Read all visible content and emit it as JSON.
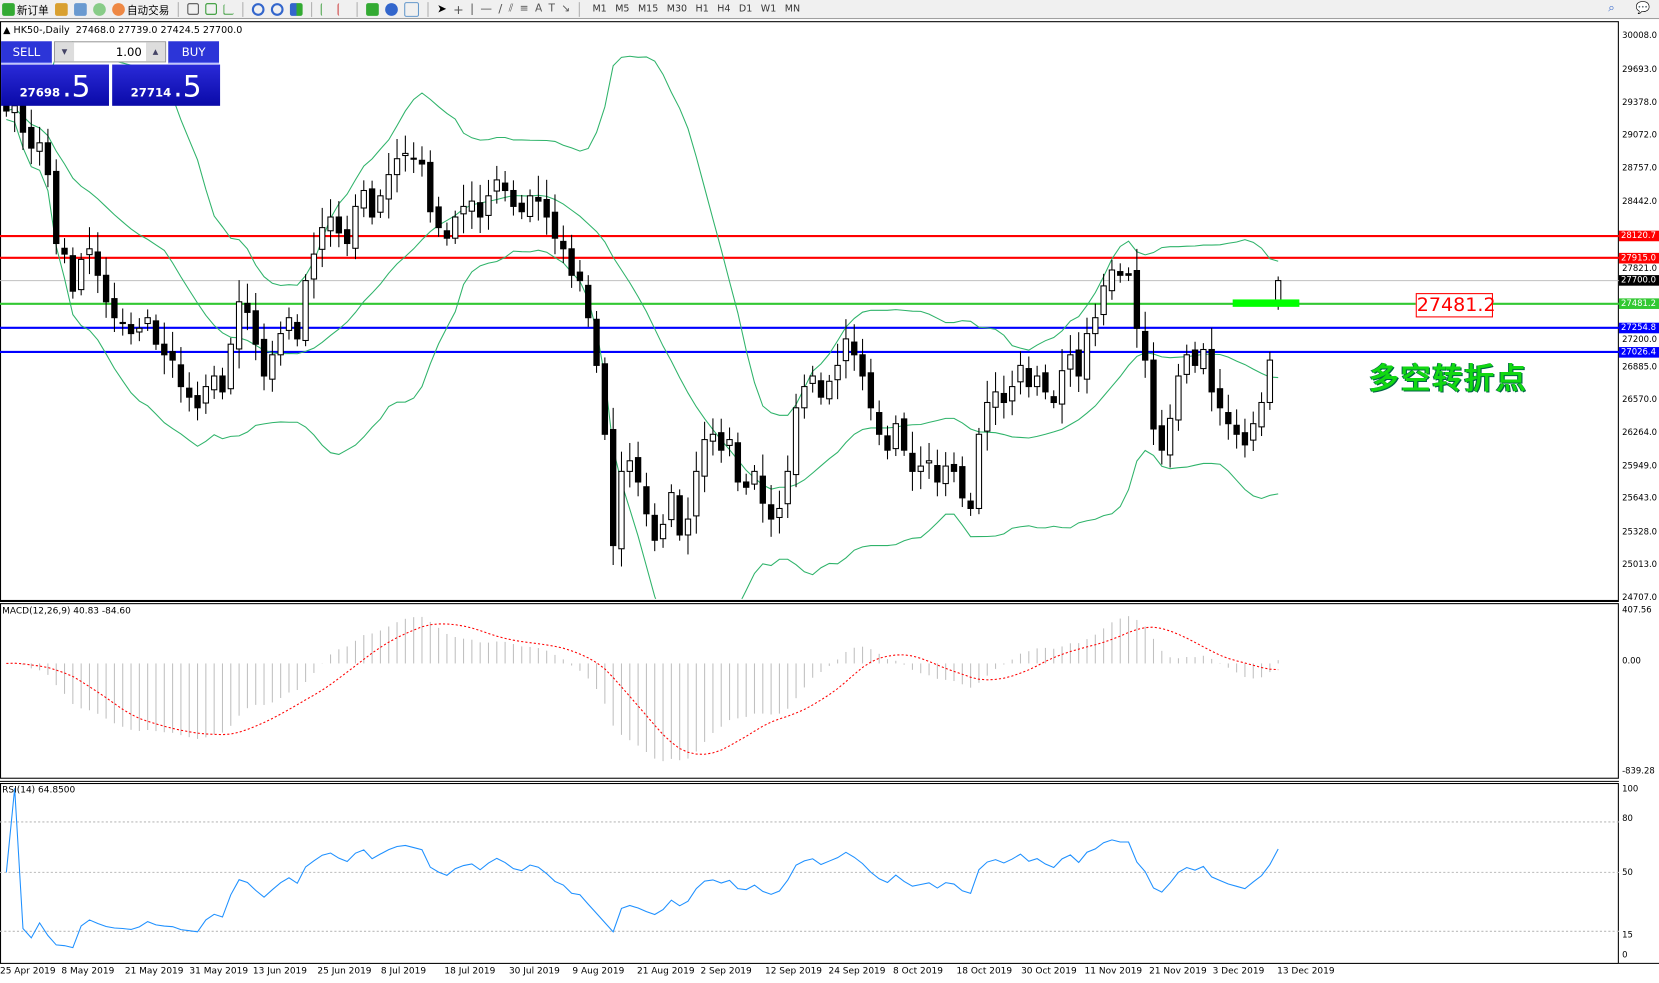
{
  "toolbar": {
    "new_order": "新订单",
    "auto_trading": "自动交易",
    "timeframes": [
      "M1",
      "M5",
      "M15",
      "M30",
      "H1",
      "H4",
      "D1",
      "W1",
      "MN"
    ]
  },
  "chart": {
    "symbol_label": "HK50-,Daily",
    "ohlc": "27468.0 27739.0 27424.5 27700.0",
    "current_price": 27700.0
  },
  "trade_panel": {
    "sell_label": "SELL",
    "buy_label": "BUY",
    "lot": "1.00",
    "sell_price_main": "27698",
    "sell_price_big": ".5",
    "buy_price_main": "27714",
    "buy_price_big": ".5"
  },
  "price_axis": [
    "30008.0",
    "29693.0",
    "29378.0",
    "29072.0",
    "28757.0",
    "28442.0",
    "27821.0",
    "27200.0",
    "26885.0",
    "26570.0",
    "26264.0",
    "25949.0",
    "25643.0",
    "25328.0",
    "25013.0",
    "24707.0"
  ],
  "levels": [
    {
      "price": 28120.7,
      "label": "28120.7",
      "color": "#ff0000"
    },
    {
      "price": 27915.0,
      "label": "27915.0",
      "color": "#ff0000"
    },
    {
      "price": 27700.0,
      "label": "27700.0",
      "color": "#000000"
    },
    {
      "price": 27481.2,
      "label": "27481.2",
      "color": "#32c832"
    },
    {
      "price": 27254.8,
      "label": "27254.8",
      "color": "#0000ff"
    },
    {
      "price": 27026.4,
      "label": "27026.4",
      "color": "#0000ff"
    }
  ],
  "annotation": {
    "price_note": "27481.2",
    "text": "多空转折点",
    "text_color": "#12d812"
  },
  "macd": {
    "label": "MACD(12,26,9) 40.83 -84.60",
    "axis": [
      "407.56",
      "0.00",
      "-839.28"
    ]
  },
  "rsi": {
    "label": "RSI(14) 64.8500",
    "axis": [
      "100",
      "80",
      "50",
      "15",
      "0"
    ]
  },
  "dates": [
    "25 Apr 2019",
    "8 May 2019",
    "21 May 2019",
    "31 May 2019",
    "13 Jun 2019",
    "25 Jun 2019",
    "8 Jul 2019",
    "18 Jul 2019",
    "30 Jul 2019",
    "9 Aug 2019",
    "21 Aug 2019",
    "2 Sep 2019",
    "12 Sep 2019",
    "24 Sep 2019",
    "8 Oct 2019",
    "18 Oct 2019",
    "30 Oct 2019",
    "11 Nov 2019",
    "21 Nov 2019",
    "3 Dec 2019",
    "13 Dec 2019"
  ],
  "chart_data": {
    "type": "candlestick",
    "symbol": "HK50-",
    "period": "Daily",
    "y_range": [
      24707.0,
      30008.0
    ],
    "closes": [
      29300,
      29350,
      29100,
      28950,
      29000,
      28700,
      28050,
      27950,
      27600,
      27900,
      28000,
      27750,
      27500,
      27350,
      27300,
      27200,
      27250,
      27350,
      27100,
      27000,
      26950,
      26700,
      26600,
      26500,
      26700,
      26800,
      26650,
      27100,
      27500,
      27400,
      27100,
      26800,
      27000,
      27200,
      27350,
      27150,
      27700,
      27950,
      28200,
      28300,
      28150,
      28050,
      28400,
      28550,
      28300,
      28500,
      28700,
      28850,
      28900,
      28850,
      28800,
      28350,
      28200,
      28100,
      28300,
      28400,
      28450,
      28300,
      28500,
      28650,
      28550,
      28400,
      28350,
      28500,
      28450,
      28300,
      28100,
      28000,
      27750,
      27700,
      27350,
      26900,
      26250,
      25200,
      25900,
      26000,
      25800,
      25500,
      25250,
      25400,
      25700,
      25300,
      25450,
      25900,
      26200,
      26250,
      26100,
      26200,
      25800,
      25750,
      25900,
      25600,
      25450,
      25550,
      25900,
      26500,
      26700,
      26800,
      26600,
      26750,
      26900,
      27150,
      27000,
      26800,
      26500,
      26250,
      26100,
      26350,
      26100,
      25900,
      25950,
      26000,
      25800,
      25950,
      25900,
      25650,
      25550,
      26250,
      26550,
      26650,
      26550,
      26700,
      26900,
      26700,
      26800,
      26650,
      26550,
      26850,
      27000,
      26800,
      27200,
      27350,
      27650,
      27800,
      27750,
      27750,
      27250,
      26950,
      26300,
      26100,
      26400,
      26800,
      27000,
      26900,
      27050,
      26650,
      26500,
      26350,
      26250,
      26150,
      26350,
      26550,
      26950,
      27700
    ],
    "last_bar": {
      "open": 27468.0,
      "high": 27739.0,
      "low": 27424.5,
      "close": 27700.0
    },
    "indicators": [
      "Bollinger Bands(20,2)",
      "MACD(12,26,9)",
      "RSI(14)"
    ]
  }
}
